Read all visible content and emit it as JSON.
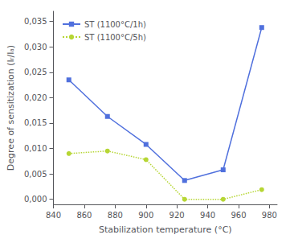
{
  "chart_data": {
    "type": "line",
    "xlabel": "Stabilization temperature (°C)",
    "ylabel": "Degree of sensitization (Iᵣ/Iₐ)",
    "x": [
      850,
      875,
      900,
      925,
      950,
      975
    ],
    "series": [
      {
        "name": "ST (1100°C/1h)",
        "values": [
          0.0235,
          0.0163,
          0.0108,
          0.0037,
          0.0058,
          0.0338
        ],
        "marker": "square",
        "line_style": "solid"
      },
      {
        "name": "ST (1100°C/5h)",
        "values": [
          0.009,
          0.0095,
          0.0078,
          0.0,
          0.0,
          0.0019
        ],
        "marker": "circle",
        "line_style": "dotted"
      }
    ],
    "xlim": [
      840,
      985
    ],
    "xticks": [
      840,
      860,
      880,
      900,
      920,
      940,
      960,
      980
    ],
    "ylim": [
      -0.001,
      0.037
    ],
    "yticks": [
      {
        "value": 0,
        "label": "0,000"
      },
      {
        "value": 0.005,
        "label": "0,005"
      },
      {
        "value": 0.01,
        "label": "0,010"
      },
      {
        "value": 0.015,
        "label": "0,015"
      },
      {
        "value": 0.02,
        "label": "0,020"
      },
      {
        "value": 0.025,
        "label": "0,025"
      },
      {
        "value": 0.03,
        "label": "0,030"
      },
      {
        "value": 0.035,
        "label": "0,035"
      }
    ],
    "grid": false,
    "legend": "upper left"
  }
}
